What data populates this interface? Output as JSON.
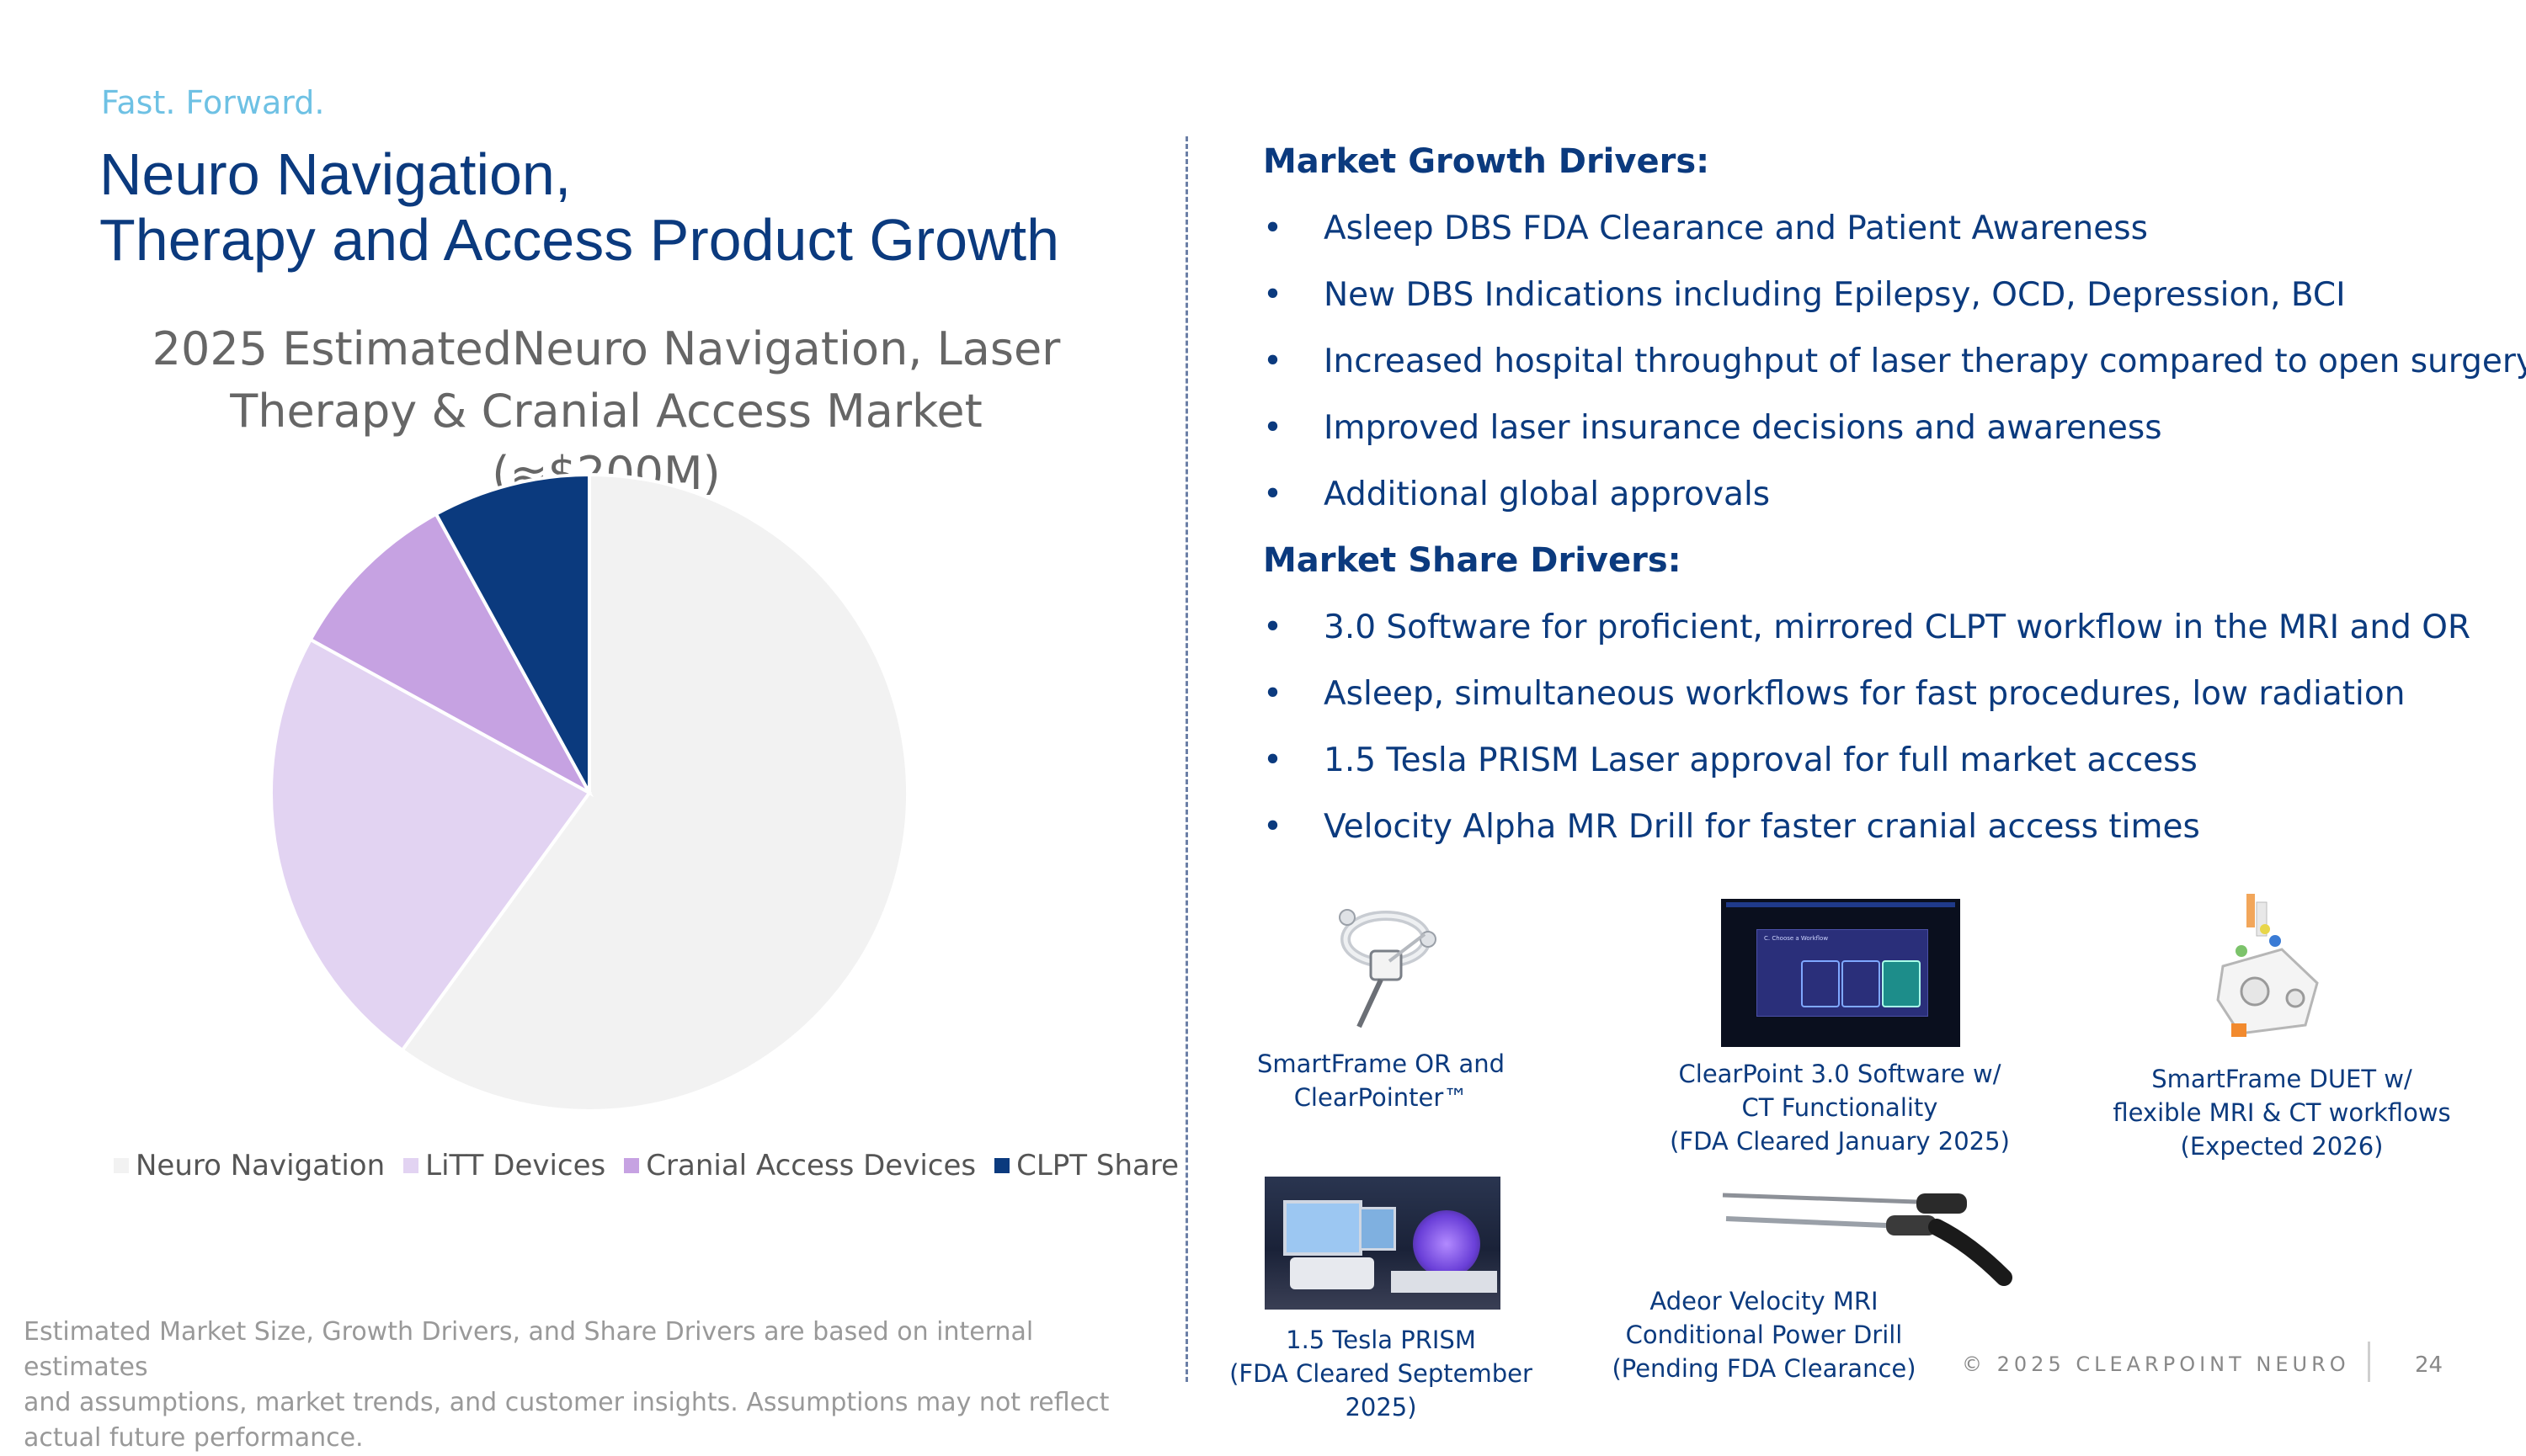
{
  "header": {
    "tagline": "Fast. Forward.",
    "title_line1": "Neuro Navigation,",
    "title_line2": "Therapy and Access Product Growth"
  },
  "chart_data": {
    "type": "pie",
    "title_line1": "2025 EstimatedNeuro Navigation, Laser",
    "title_line2": "Therapy & Cranial Access Market (≈$200M)",
    "categories": [
      "Neuro Navigation",
      "LiTT Devices",
      "Cranial Access Devices",
      "CLPT Share"
    ],
    "values": [
      60,
      23,
      9,
      8
    ],
    "colors": [
      "#f2f2f2",
      "#e2d3f2",
      "#c6a2e2",
      "#0b3a7e"
    ],
    "legend": "bottom"
  },
  "growth": {
    "heading": "Market Growth Drivers:",
    "items": [
      "Asleep DBS FDA Clearance and Patient Awareness",
      "New DBS Indications including Epilepsy, OCD, Depression, BCI",
      "Increased hospital throughput of laser therapy compared to open surgery",
      "Improved laser insurance decisions and awareness",
      "Additional global approvals"
    ]
  },
  "share": {
    "heading": "Market Share Drivers:",
    "items": [
      "3.0 Software for proficient, mirrored CLPT workflow in the MRI and OR",
      "Asleep, simultaneous workflows for fast procedures, low radiation",
      "1.5 Tesla PRISM Laser approval for full market access",
      "Velocity Alpha MR Drill for faster cranial access times"
    ]
  },
  "bullet_char": "•",
  "products": {
    "smartframe_or": [
      "SmartFrame OR and",
      "ClearPointer™"
    ],
    "clearpoint_3": [
      "ClearPoint 3.0 Software w/",
      "CT Functionality",
      "(FDA Cleared January 2025)"
    ],
    "smartframe_duet": [
      "SmartFrame DUET w/",
      "flexible MRI & CT workflows",
      "(Expected 2026)"
    ],
    "prism": [
      "1.5 Tesla PRISM",
      "(FDA Cleared September",
      "2025)"
    ],
    "adeor": [
      "Adeor Velocity MRI",
      "Conditional Power Drill",
      "(Pending FDA Clearance)"
    ],
    "screen_text": "C. Choose a Workflow"
  },
  "footer": {
    "disclaimer_line1": "Estimated Market Size, Growth Drivers, and Share Drivers are based on internal estimates",
    "disclaimer_line2": "and assumptions, market trends, and customer insights.  Assumptions may not reflect",
    "disclaimer_line3": "actual future performance.",
    "copyright": "© 2025 CLEARPOINT NEURO",
    "page_number": "24"
  }
}
